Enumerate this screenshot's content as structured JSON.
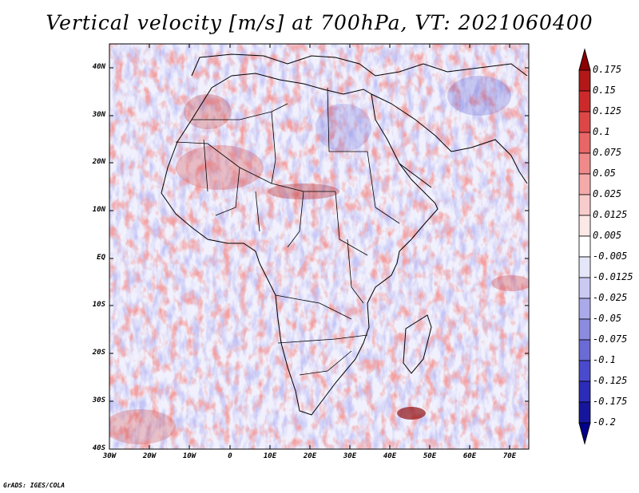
{
  "title": "Vertical velocity [m/s] at 700hPa, VT: 2021060400",
  "credit": "GrADS: IGES/COLA",
  "map": {
    "region": "Africa",
    "projection": "latlon",
    "lat_range": [
      -40,
      45
    ],
    "lon_range": [
      -30,
      75
    ],
    "lat_labels": [
      "40N",
      "30N",
      "20N",
      "10N",
      "EQ",
      "10S",
      "20S",
      "30S",
      "40S"
    ],
    "lon_labels": [
      "30W",
      "20W",
      "10W",
      "0",
      "10E",
      "20E",
      "30E",
      "40E",
      "50E",
      "60E",
      "70E"
    ],
    "field": "vertical velocity at 700hPa"
  },
  "colorbar": {
    "labels": [
      "0.175",
      "0.15",
      "0.125",
      "0.1",
      "0.075",
      "0.05",
      "0.025",
      "0.0125",
      "0.005",
      "-0.005",
      "-0.0125",
      "-0.025",
      "-0.05",
      "-0.075",
      "-0.1",
      "-0.125",
      "-0.175",
      "-0.2"
    ],
    "colors": [
      "#8b0000",
      "#b21818",
      "#cc2a2a",
      "#dd4646",
      "#e86666",
      "#f08a8a",
      "#f5aaaa",
      "#f9cccc",
      "#fde8e8",
      "#ffffff",
      "#e6e6fa",
      "#c9c9f2",
      "#aaaaeb",
      "#8b8be0",
      "#6b6bd6",
      "#4a4acc",
      "#2c2cb8",
      "#16169c",
      "#00008b"
    ]
  }
}
